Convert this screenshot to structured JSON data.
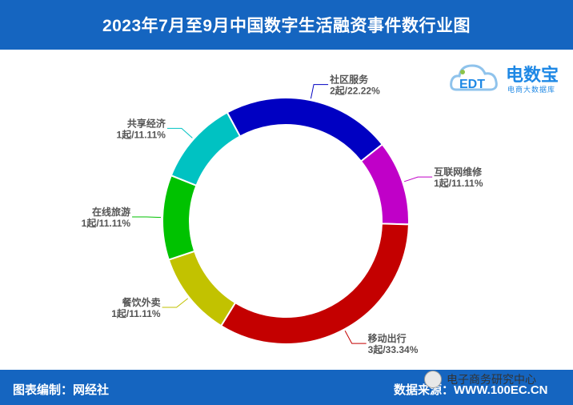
{
  "header": {
    "title": "2023年7月至9月中国数字生活融资事件数行业图"
  },
  "footer": {
    "left": "图表编制：网经社",
    "right": "数据来源：WWW.100EC.CN",
    "watermark": "电子商务研究中心"
  },
  "logo": {
    "brand": "电数宝",
    "sub": "电商大数据库",
    "mark": "EDT"
  },
  "colors": {
    "header_bg": "#1565c0",
    "label": "#555555"
  },
  "chart_data": {
    "type": "pie",
    "donut": true,
    "title": "2023年7月至9月中国数字生活融资事件数行业图",
    "legend": "none",
    "slices": [
      {
        "label": "社区服务",
        "value": 2,
        "display": "2起/22.22%",
        "color": "#0000c2"
      },
      {
        "label": "互联网维修",
        "value": 1,
        "display": "1起/11.11%",
        "color": "#c000c8"
      },
      {
        "label": "移动出行",
        "value": 3,
        "display": "3起/33.34%",
        "color": "#c40000"
      },
      {
        "label": "餐饮外卖",
        "value": 1,
        "display": "1起/11.11%",
        "color": "#c2c200"
      },
      {
        "label": "在线旅游",
        "value": 1,
        "display": "1起/11.11%",
        "color": "#00c200"
      },
      {
        "label": "共享经济",
        "value": 1,
        "display": "1起/11.11%",
        "color": "#00c2c2"
      }
    ]
  }
}
